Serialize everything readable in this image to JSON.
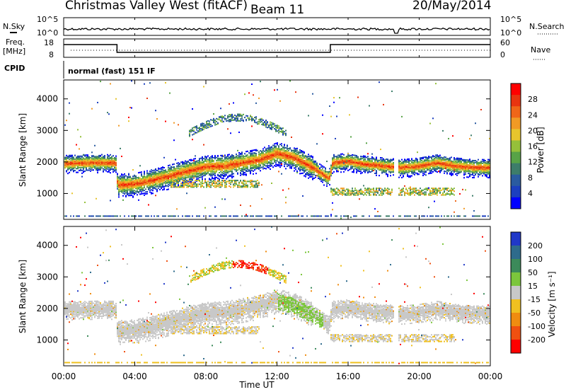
{
  "header": {
    "station": "Christmas Valley West (fitACF)",
    "beam": "Beam 11",
    "date": "20/May/2014"
  },
  "strip_panels": {
    "nsky_label": "N.Sky",
    "nsky_ticks": [
      "10^5",
      "10^0"
    ],
    "nsearch_label": "N.Search",
    "nsearch_ticks": [
      "10^5",
      "10^0"
    ],
    "freq_label_1": "Freq.",
    "freq_label_2": "[MHz]",
    "freq_ticks": [
      "18",
      "8"
    ],
    "nave_label": "Nave",
    "nave_ticks": [
      "60",
      "0"
    ],
    "cpid_label": "CPID",
    "cpid_text": "normal (fast) 151 IF"
  },
  "chart_data": [
    {
      "type": "heatmap",
      "name": "power",
      "ylabel": "Slant Range [km]",
      "yticks": [
        1000,
        2000,
        3000,
        4000
      ],
      "ylim": [
        180,
        4600
      ],
      "xlim": [
        0,
        24
      ],
      "colorbar_label": "Power [dB]",
      "colorbar_ticks": [
        "4",
        "8",
        "12",
        "16",
        "20",
        "24",
        "28"
      ],
      "colorscale": [
        "#0000ff",
        "#1c3fbf",
        "#2a5ba0",
        "#3d7d6a",
        "#58a347",
        "#95c03a",
        "#e7c52d",
        "#f19a25",
        "#f06618",
        "#e83410",
        "#ff0000"
      ],
      "ridge": [
        {
          "t": 0.0,
          "r": 1930
        },
        {
          "t": 1.0,
          "r": 1940
        },
        {
          "t": 2.0,
          "r": 1960
        },
        {
          "t": 2.9,
          "r": 1950
        },
        {
          "t": 3.0,
          "r": 1250
        },
        {
          "t": 4.0,
          "r": 1280
        },
        {
          "t": 5.0,
          "r": 1400
        },
        {
          "t": 6.0,
          "r": 1550
        },
        {
          "t": 7.0,
          "r": 1700
        },
        {
          "t": 8.0,
          "r": 1830
        },
        {
          "t": 9.0,
          "r": 1850
        },
        {
          "t": 10.0,
          "r": 1950
        },
        {
          "t": 11.0,
          "r": 2050
        },
        {
          "t": 12.0,
          "r": 2250
        },
        {
          "t": 13.0,
          "r": 2100
        },
        {
          "t": 14.0,
          "r": 1800
        },
        {
          "t": 14.9,
          "r": 1450
        },
        {
          "t": 15.1,
          "r": 1950
        },
        {
          "t": 16.0,
          "r": 2000
        },
        {
          "t": 17.0,
          "r": 1900
        },
        {
          "t": 18.0,
          "r": 1850
        },
        {
          "t": 19.0,
          "r": 1800
        },
        {
          "t": 20.0,
          "r": 1850
        },
        {
          "t": 21.0,
          "r": 1950
        },
        {
          "t": 22.0,
          "r": 1850
        },
        {
          "t": 23.0,
          "r": 1800
        },
        {
          "t": 24.0,
          "r": 1800
        }
      ]
    },
    {
      "type": "heatmap",
      "name": "velocity",
      "ylabel": "Slant Range [km]",
      "yticks": [
        1000,
        2000,
        3000,
        4000
      ],
      "ylim": [
        180,
        4600
      ],
      "xlim": [
        0,
        24
      ],
      "colorbar_label": "Velocity [m s⁻¹]",
      "colorbar_ticks": [
        "200",
        "100",
        "50",
        "15",
        "-15",
        "-50",
        "-100",
        "-200"
      ],
      "colorscale": [
        "#2038c8",
        "#2e6b8c",
        "#3c8a5a",
        "#7cc63c",
        "#c8c8c8",
        "#f0c020",
        "#f08c10",
        "#f05010",
        "#ff0000"
      ],
      "band_center_km": 1700
    }
  ],
  "xaxis": {
    "label": "Time UT",
    "ticks": [
      "00:00",
      "04:00",
      "08:00",
      "12:00",
      "16:00",
      "20:00",
      "00:00"
    ]
  }
}
